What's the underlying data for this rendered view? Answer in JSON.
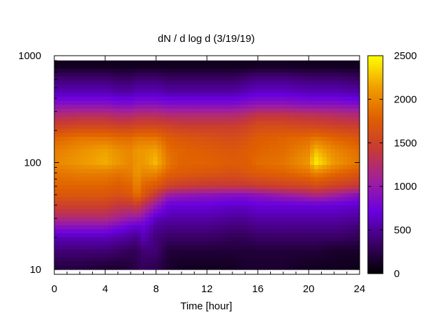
{
  "chart_data": {
    "type": "heatmap",
    "title": "dN / d log d (3/19/19)",
    "xlabel": "Time [hour]",
    "ylabel": "",
    "xlim": [
      0,
      24
    ],
    "ylim": [
      9,
      1000
    ],
    "y_scale": "log",
    "x_ticks": [
      "0",
      "4",
      "8",
      "12",
      "16",
      "20",
      "24"
    ],
    "x_tick_values": [
      0,
      4,
      8,
      12,
      16,
      20,
      24
    ],
    "y_ticks": [
      "10",
      "100",
      "1000"
    ],
    "y_tick_values": [
      10,
      100,
      1000
    ],
    "colorbar": {
      "range": [
        0,
        2500
      ],
      "ticks": [
        "0",
        "500",
        "1000",
        "1500",
        "2000",
        "2500"
      ],
      "tick_values": [
        0,
        500,
        1000,
        1500,
        2000,
        2500
      ],
      "palette": [
        "#000000",
        "#3c0069",
        "#6a00e0",
        "#a0209c",
        "#c83a33",
        "#e06000",
        "#f0a000",
        "#ffff00"
      ]
    },
    "time_hours": [
      0,
      2,
      4,
      5,
      6,
      6.5,
      7,
      8,
      9,
      10,
      12,
      14,
      15,
      16,
      18,
      20,
      20.5,
      22,
      24
    ],
    "diameter_bins": [
      10,
      15,
      20,
      25,
      30,
      40,
      50,
      60,
      80,
      100,
      130,
      170,
      220,
      280,
      350,
      450,
      600,
      800
    ],
    "values": [
      [
        200,
        200,
        150,
        150,
        200,
        250,
        300,
        250,
        150,
        100,
        100,
        100,
        150,
        150,
        150,
        100,
        100,
        100,
        80
      ],
      [
        400,
        400,
        400,
        350,
        300,
        300,
        400,
        400,
        200,
        200,
        200,
        200,
        200,
        200,
        200,
        200,
        200,
        150,
        150
      ],
      [
        600,
        600,
        600,
        550,
        500,
        450,
        600,
        400,
        350,
        350,
        350,
        300,
        300,
        350,
        350,
        350,
        350,
        350,
        300
      ],
      [
        900,
        900,
        900,
        800,
        700,
        650,
        700,
        500,
        450,
        450,
        450,
        400,
        400,
        450,
        450,
        450,
        450,
        450,
        400
      ],
      [
        1200,
        1200,
        1200,
        1100,
        1000,
        1000,
        900,
        600,
        550,
        550,
        550,
        500,
        500,
        550,
        550,
        550,
        550,
        550,
        500
      ],
      [
        1500,
        1500,
        1500,
        1400,
        1400,
        1500,
        1300,
        1000,
        700,
        700,
        700,
        650,
        650,
        700,
        700,
        700,
        700,
        700,
        650
      ],
      [
        1700,
        1700,
        1700,
        1650,
        1700,
        1900,
        1700,
        1400,
        1050,
        1000,
        950,
        900,
        900,
        950,
        1050,
        1150,
        1200,
        1100,
        900
      ],
      [
        1800,
        1800,
        1800,
        1750,
        1800,
        2000,
        1800,
        1700,
        1500,
        1450,
        1400,
        1400,
        1400,
        1450,
        1500,
        1550,
        1600,
        1500,
        1400
      ],
      [
        1900,
        1950,
        1950,
        1900,
        1950,
        2100,
        2000,
        2000,
        1800,
        1750,
        1700,
        1650,
        1700,
        1750,
        1800,
        1900,
        2000,
        1850,
        1700
      ],
      [
        2000,
        2100,
        2200,
        2100,
        2000,
        2100,
        2100,
        2250,
        1900,
        1800,
        1800,
        1750,
        1750,
        1850,
        1900,
        2100,
        2450,
        2100,
        1900
      ],
      [
        1950,
        2050,
        2150,
        2050,
        2000,
        2100,
        2100,
        2150,
        1850,
        1800,
        1750,
        1700,
        1750,
        1800,
        1850,
        2000,
        2250,
        2000,
        1850
      ],
      [
        1800,
        1900,
        1900,
        1850,
        1850,
        1900,
        1900,
        1900,
        1750,
        1700,
        1650,
        1600,
        1650,
        1750,
        1800,
        1850,
        1900,
        1800,
        1700
      ],
      [
        1500,
        1550,
        1550,
        1500,
        1500,
        1550,
        1550,
        1550,
        1500,
        1450,
        1450,
        1450,
        1500,
        1600,
        1600,
        1550,
        1550,
        1500,
        1450
      ],
      [
        1200,
        1250,
        1250,
        1200,
        1200,
        1250,
        1250,
        1250,
        1200,
        1200,
        1200,
        1200,
        1250,
        1350,
        1350,
        1300,
        1300,
        1250,
        1200
      ],
      [
        900,
        900,
        900,
        850,
        850,
        900,
        900,
        900,
        850,
        850,
        850,
        850,
        900,
        950,
        950,
        900,
        900,
        900,
        850
      ],
      [
        600,
        600,
        600,
        550,
        550,
        600,
        600,
        600,
        550,
        550,
        550,
        550,
        600,
        650,
        650,
        600,
        600,
        600,
        550
      ],
      [
        400,
        400,
        400,
        350,
        350,
        400,
        400,
        400,
        350,
        350,
        350,
        350,
        400,
        450,
        450,
        400,
        400,
        400,
        350
      ],
      [
        100,
        100,
        100,
        100,
        100,
        100,
        100,
        100,
        100,
        100,
        100,
        100,
        100,
        120,
        120,
        100,
        100,
        100,
        100
      ]
    ]
  }
}
